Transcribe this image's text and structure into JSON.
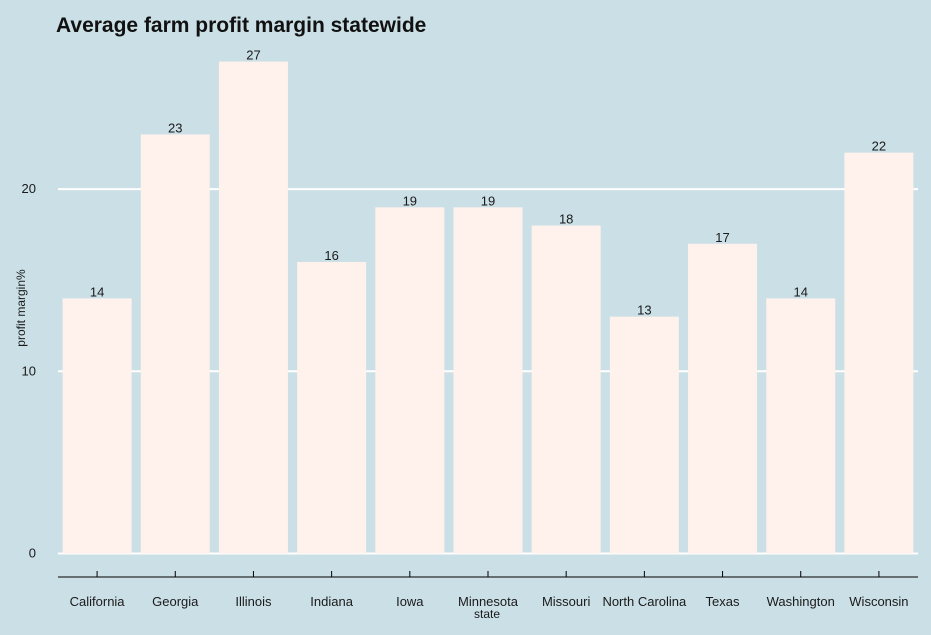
{
  "chart_data": {
    "type": "bar",
    "title": "Average farm profit margin statewide",
    "xlabel": "state",
    "ylabel": "profit margin%",
    "categories": [
      "California",
      "Georgia",
      "Illinois",
      "Indiana",
      "Iowa",
      "Minnesota",
      "Missouri",
      "North Carolina",
      "Texas",
      "Washington",
      "Wisconsin"
    ],
    "values": [
      14,
      23,
      27,
      16,
      19,
      19,
      18,
      13,
      17,
      14,
      22
    ],
    "data_labels": [
      "14",
      "23",
      "27",
      "16",
      "19",
      "19",
      "18",
      "13",
      "17",
      "14",
      "22"
    ],
    "yticks": [
      0,
      10,
      20
    ],
    "ytick_labels": [
      "0",
      "10",
      "20"
    ],
    "ylim": [
      0,
      28
    ],
    "grid": "horizontal",
    "legend": "none",
    "colors": {
      "background": "#cbdfe6",
      "bar": "#fff1ec",
      "grid": "#ffffff",
      "text": "#1a1a1a",
      "axis": "#000000"
    }
  }
}
